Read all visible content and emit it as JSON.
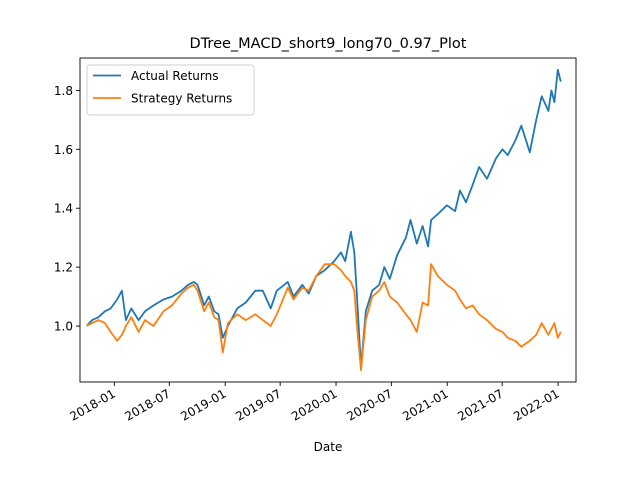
{
  "chart_data": {
    "type": "line",
    "title": "DTree_MACD_short9_long70_0.97_Plot",
    "xlabel": "Date",
    "ylabel": "",
    "xlim": [
      "2017-09-10",
      "2022-03-01"
    ],
    "ylim": [
      0.81,
      1.91
    ],
    "x_ticks": [
      "2018-01",
      "2018-07",
      "2019-01",
      "2019-07",
      "2020-01",
      "2020-07",
      "2021-01",
      "2021-07",
      "2022-01"
    ],
    "y_ticks": [
      1.0,
      1.2,
      1.4,
      1.6,
      1.8
    ],
    "y_tick_labels": [
      "1.0",
      "1.2",
      "1.4",
      "1.6",
      "1.8"
    ],
    "grid": false,
    "legend": {
      "position": "top-left"
    },
    "series": [
      {
        "name": "Actual Returns",
        "color": "#1f77b4",
        "points": [
          [
            "2017-10-02",
            1.0
          ],
          [
            "2017-10-20",
            1.02
          ],
          [
            "2017-11-10",
            1.03
          ],
          [
            "2017-12-01",
            1.05
          ],
          [
            "2017-12-20",
            1.06
          ],
          [
            "2018-01-10",
            1.09
          ],
          [
            "2018-01-26",
            1.12
          ],
          [
            "2018-02-08",
            1.02
          ],
          [
            "2018-02-26",
            1.06
          ],
          [
            "2018-03-22",
            1.02
          ],
          [
            "2018-04-12",
            1.05
          ],
          [
            "2018-05-10",
            1.07
          ],
          [
            "2018-06-12",
            1.09
          ],
          [
            "2018-07-10",
            1.1
          ],
          [
            "2018-08-10",
            1.12
          ],
          [
            "2018-09-01",
            1.14
          ],
          [
            "2018-09-20",
            1.15
          ],
          [
            "2018-10-02",
            1.14
          ],
          [
            "2018-10-24",
            1.07
          ],
          [
            "2018-11-08",
            1.1
          ],
          [
            "2018-11-26",
            1.05
          ],
          [
            "2018-12-10",
            1.04
          ],
          [
            "2018-12-24",
            0.96
          ],
          [
            "2019-01-10",
            1.0
          ],
          [
            "2019-02-10",
            1.06
          ],
          [
            "2019-03-10",
            1.08
          ],
          [
            "2019-04-10",
            1.12
          ],
          [
            "2019-05-05",
            1.12
          ],
          [
            "2019-05-31",
            1.06
          ],
          [
            "2019-06-20",
            1.12
          ],
          [
            "2019-07-26",
            1.15
          ],
          [
            "2019-08-14",
            1.1
          ],
          [
            "2019-09-12",
            1.14
          ],
          [
            "2019-10-03",
            1.11
          ],
          [
            "2019-10-28",
            1.17
          ],
          [
            "2019-11-25",
            1.19
          ],
          [
            "2019-12-26",
            1.22
          ],
          [
            "2020-01-17",
            1.25
          ],
          [
            "2020-01-31",
            1.22
          ],
          [
            "2020-02-19",
            1.32
          ],
          [
            "2020-03-01",
            1.25
          ],
          [
            "2020-03-10",
            1.1
          ],
          [
            "2020-03-23",
            0.86
          ],
          [
            "2020-04-08",
            1.05
          ],
          [
            "2020-04-29",
            1.12
          ],
          [
            "2020-05-22",
            1.14
          ],
          [
            "2020-06-08",
            1.2
          ],
          [
            "2020-06-26",
            1.16
          ],
          [
            "2020-07-20",
            1.24
          ],
          [
            "2020-08-18",
            1.3
          ],
          [
            "2020-09-02",
            1.36
          ],
          [
            "2020-09-23",
            1.28
          ],
          [
            "2020-10-12",
            1.34
          ],
          [
            "2020-10-30",
            1.27
          ],
          [
            "2020-11-09",
            1.36
          ],
          [
            "2020-12-01",
            1.38
          ],
          [
            "2020-12-31",
            1.41
          ],
          [
            "2021-01-27",
            1.39
          ],
          [
            "2021-02-12",
            1.46
          ],
          [
            "2021-03-04",
            1.42
          ],
          [
            "2021-03-26",
            1.48
          ],
          [
            "2021-04-16",
            1.54
          ],
          [
            "2021-05-12",
            1.5
          ],
          [
            "2021-06-11",
            1.57
          ],
          [
            "2021-07-02",
            1.6
          ],
          [
            "2021-07-19",
            1.58
          ],
          [
            "2021-08-13",
            1.63
          ],
          [
            "2021-09-02",
            1.68
          ],
          [
            "2021-09-30",
            1.59
          ],
          [
            "2021-10-21",
            1.7
          ],
          [
            "2021-11-08",
            1.78
          ],
          [
            "2021-11-30",
            1.73
          ],
          [
            "2021-12-10",
            1.8
          ],
          [
            "2021-12-20",
            1.76
          ],
          [
            "2021-12-31",
            1.87
          ],
          [
            "2022-01-05",
            1.85
          ],
          [
            "2022-01-10",
            1.83
          ]
        ]
      },
      {
        "name": "Strategy Returns",
        "color": "#ff7f0e",
        "points": [
          [
            "2017-10-02",
            1.0
          ],
          [
            "2017-10-20",
            1.01
          ],
          [
            "2017-11-10",
            1.02
          ],
          [
            "2017-12-01",
            1.01
          ],
          [
            "2017-12-20",
            0.98
          ],
          [
            "2018-01-10",
            0.95
          ],
          [
            "2018-01-26",
            0.97
          ],
          [
            "2018-02-08",
            1.0
          ],
          [
            "2018-02-26",
            1.03
          ],
          [
            "2018-03-22",
            0.98
          ],
          [
            "2018-04-12",
            1.02
          ],
          [
            "2018-05-10",
            1.0
          ],
          [
            "2018-06-12",
            1.05
          ],
          [
            "2018-07-10",
            1.07
          ],
          [
            "2018-08-10",
            1.11
          ],
          [
            "2018-09-01",
            1.13
          ],
          [
            "2018-09-20",
            1.14
          ],
          [
            "2018-10-02",
            1.12
          ],
          [
            "2018-10-24",
            1.05
          ],
          [
            "2018-11-08",
            1.08
          ],
          [
            "2018-11-26",
            1.03
          ],
          [
            "2018-12-10",
            1.02
          ],
          [
            "2018-12-24",
            0.91
          ],
          [
            "2019-01-10",
            1.01
          ],
          [
            "2019-02-10",
            1.04
          ],
          [
            "2019-03-10",
            1.02
          ],
          [
            "2019-04-10",
            1.04
          ],
          [
            "2019-05-05",
            1.02
          ],
          [
            "2019-05-31",
            1.0
          ],
          [
            "2019-06-20",
            1.04
          ],
          [
            "2019-07-26",
            1.13
          ],
          [
            "2019-08-14",
            1.09
          ],
          [
            "2019-09-12",
            1.13
          ],
          [
            "2019-10-03",
            1.12
          ],
          [
            "2019-10-28",
            1.17
          ],
          [
            "2019-11-25",
            1.21
          ],
          [
            "2019-12-26",
            1.21
          ],
          [
            "2020-01-17",
            1.19
          ],
          [
            "2020-01-31",
            1.17
          ],
          [
            "2020-02-19",
            1.15
          ],
          [
            "2020-03-01",
            1.12
          ],
          [
            "2020-03-10",
            1.0
          ],
          [
            "2020-03-23",
            0.85
          ],
          [
            "2020-04-08",
            1.02
          ],
          [
            "2020-04-29",
            1.1
          ],
          [
            "2020-05-22",
            1.12
          ],
          [
            "2020-06-08",
            1.15
          ],
          [
            "2020-06-26",
            1.1
          ],
          [
            "2020-07-20",
            1.08
          ],
          [
            "2020-08-18",
            1.04
          ],
          [
            "2020-09-02",
            1.02
          ],
          [
            "2020-09-23",
            0.98
          ],
          [
            "2020-10-12",
            1.08
          ],
          [
            "2020-10-30",
            1.07
          ],
          [
            "2020-11-09",
            1.21
          ],
          [
            "2020-12-01",
            1.17
          ],
          [
            "2020-12-31",
            1.14
          ],
          [
            "2021-01-27",
            1.12
          ],
          [
            "2021-02-12",
            1.09
          ],
          [
            "2021-03-04",
            1.06
          ],
          [
            "2021-03-26",
            1.07
          ],
          [
            "2021-04-16",
            1.04
          ],
          [
            "2021-05-12",
            1.02
          ],
          [
            "2021-06-11",
            0.99
          ],
          [
            "2021-07-02",
            0.98
          ],
          [
            "2021-07-19",
            0.96
          ],
          [
            "2021-08-13",
            0.95
          ],
          [
            "2021-09-02",
            0.93
          ],
          [
            "2021-09-30",
            0.95
          ],
          [
            "2021-10-21",
            0.97
          ],
          [
            "2021-11-08",
            1.01
          ],
          [
            "2021-11-30",
            0.97
          ],
          [
            "2021-12-10",
            0.99
          ],
          [
            "2021-12-20",
            1.01
          ],
          [
            "2021-12-31",
            0.96
          ],
          [
            "2022-01-05",
            0.97
          ],
          [
            "2022-01-10",
            0.98
          ]
        ]
      }
    ]
  }
}
